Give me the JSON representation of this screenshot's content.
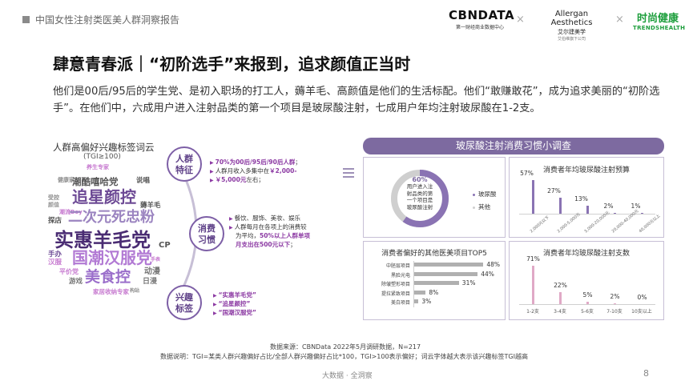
{
  "header": {
    "report_title": "中国女性注射类医美人群洞察报告",
    "logo_cbn": "CBNDATA",
    "logo_cbn_sub": "第一财经商业数据中心",
    "logo_aa": "Allergan Aesthetics",
    "logo_aa_cn": "艾尔建美学",
    "logo_aa_sub": "艾伯维旗下公司",
    "logo_th_cn": "时尚健康",
    "logo_th_en": "TRENDSHEALTH",
    "sep": "×"
  },
  "headline": "肆意青春派｜“初阶选手”来报到，追求颜值正当时",
  "intro": "他们是00后/95后的学生党、是初入职场的打工人，薅羊毛、高颜值是他们的生活标配。他们“敢赚敢花”，成为追求美丽的“初阶选手”。在他们中，六成用户进入注射品类的第一个项目是玻尿酸注射，七成用户年均注射玻尿酸在1-2支。",
  "cloud": {
    "title": "人群高偏好兴趣标签词云",
    "subtitle": "(TGI≥100)",
    "words": [
      {
        "text": "养生专家",
        "color": "#c77ad0"
      },
      {
        "text": "健康家",
        "color": "#8c8c8c"
      },
      {
        "text": "潮酷嘻哈党",
        "color": "#555555"
      },
      {
        "text": "说唱",
        "color": "#555555"
      },
      {
        "text": "追星颜控",
        "color": "#6d4a95"
      },
      {
        "text": "受控",
        "color": "#8c8c8c"
      },
      {
        "text": "颜值",
        "color": "#999999"
      },
      {
        "text": "薅羊毛",
        "color": "#555555"
      },
      {
        "text": "潮流Boy",
        "color": "#c77ad0"
      },
      {
        "text": "探店",
        "color": "#555555"
      },
      {
        "text": "二次元死忠粉",
        "color": "#9b84c0"
      },
      {
        "text": "实惠羊毛党",
        "color": "#4a2c73"
      },
      {
        "text": "CP",
        "color": "#555555"
      },
      {
        "text": "手办",
        "color": "#6d4a95"
      },
      {
        "text": "汉服",
        "color": "#c77ad0"
      },
      {
        "text": "国潮汉服党",
        "color": "#b27ad4"
      },
      {
        "text": "平价党",
        "color": "#c77ad0"
      },
      {
        "text": "动漫",
        "color": "#777777"
      },
      {
        "text": "游戏",
        "color": "#777777"
      },
      {
        "text": "美食控",
        "color": "#9b6fcb"
      },
      {
        "text": "日漫",
        "color": "#777777"
      },
      {
        "text": "家居收纳专家",
        "color": "#c77ad0"
      },
      {
        "text": "构站",
        "color": "#8c8c8c"
      },
      {
        "text": "手表",
        "color": "#c77ad0"
      }
    ]
  },
  "groups": [
    {
      "label": "人群\n特征",
      "lines": [
        {
          "pre": "",
          "hl": "70%为00后/95后/90后人群",
          "post": "；"
        },
        {
          "pre": "人群月收入多集中在",
          "hl": "￥2,000-",
          "post": ""
        },
        {
          "pre": "",
          "hl": "￥5,000元",
          "post": "左右；"
        }
      ]
    },
    {
      "label": "消费\n习惯",
      "lines": [
        {
          "pre": "餐饮、服饰、美妆、娱乐",
          "hl": "",
          "post": ""
        },
        {
          "pre": "人群每月在各项上的消费较",
          "hl": "",
          "post": ""
        },
        {
          "pre": "为平均，",
          "hl": "50%以上人群单项",
          "post": ""
        },
        {
          "pre": "",
          "hl": "月支出在500元以下",
          "post": "；"
        }
      ]
    },
    {
      "label": "兴趣\n标签",
      "lines": [
        {
          "pre": "",
          "hl": "“实惠羊毛党”",
          "post": ""
        },
        {
          "pre": "",
          "hl": "“追星颜控”",
          "post": ""
        },
        {
          "pre": "",
          "hl": "“国潮汉服党”",
          "post": ""
        }
      ]
    }
  ],
  "panel": {
    "title": "玻尿酸注射消费习惯小调查",
    "donut": {
      "pct": "60%",
      "center_lines": [
        "用户进入注",
        "射品类的第",
        "一个项目是",
        "玻尿酸注射"
      ],
      "value": 60,
      "legend": [
        {
          "label": "玻尿酸",
          "color": "#8a73b3"
        },
        {
          "label": "其他",
          "color": "#cfcfcf"
        }
      ]
    },
    "budget": {
      "title": "消费者年均玻尿酸注射预算",
      "categories": [
        "2,000元以下",
        "2,000-5,000元",
        "5,000-20,000元",
        "20,000-40,000元",
        "40,000元以上"
      ],
      "values": [
        57,
        27,
        13,
        2,
        1
      ],
      "labels": [
        "57%",
        "27%",
        "13%",
        "2%",
        "1%"
      ]
    },
    "top5": {
      "title": "消费者偏好的其他医美项目TOP5",
      "categories": [
        "中胚层项目",
        "黑脸光电",
        "除皱塑形项目",
        "提拉紧致项目",
        "美白项目"
      ],
      "values": [
        48,
        44,
        31,
        8,
        3
      ],
      "labels": [
        "48%",
        "44%",
        "31%",
        "8%",
        "3%"
      ]
    },
    "count": {
      "title": "消费者年均玻尿酸注射支数",
      "categories": [
        "1-2支",
        "3-4支",
        "5-6支",
        "7-10支",
        "10支以上"
      ],
      "values": [
        71,
        22,
        5,
        2,
        0
      ],
      "labels": [
        "71%",
        "22%",
        "5%",
        "2%",
        "0%"
      ]
    }
  },
  "source": "数据来源：CBNData 2022年5月调研数据，N=217",
  "note": "数据说明：TGI=某类人群兴趣偏好占比/全部人群兴趣偏好占比*100，TGI>100表示偏好；词云字体越大表示该兴趣标签TGI越高",
  "footer": "大数据 · 全洞察",
  "page": "8"
}
